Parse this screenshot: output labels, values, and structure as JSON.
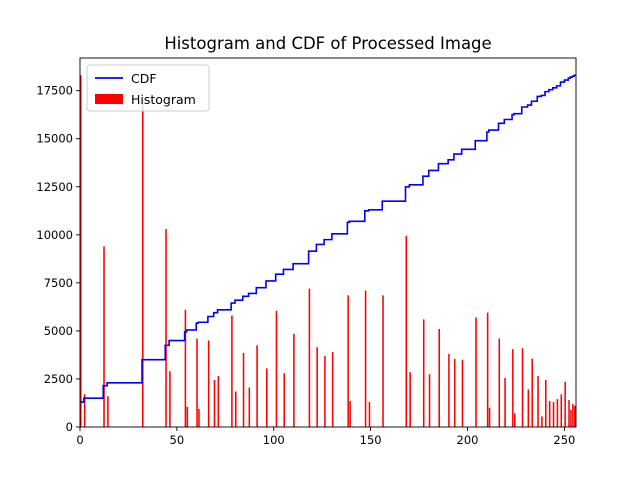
{
  "chart_data": {
    "type": "bar",
    "title": "Histogram and CDF of Processed Image",
    "xlabel": "",
    "ylabel": "",
    "xlim": [
      0,
      256
    ],
    "ylim": [
      0,
      19200
    ],
    "xticks": [
      0,
      50,
      100,
      150,
      200,
      250
    ],
    "xtick_labels": [
      "0",
      "50",
      "100",
      "150",
      "200",
      "250"
    ],
    "yticks": [
      0,
      2500,
      5000,
      7500,
      10000,
      12500,
      15000,
      17500
    ],
    "ytick_labels": [
      "0",
      "2500",
      "5000",
      "7500",
      "10000",
      "12500",
      "15000",
      "17500"
    ],
    "grid": false,
    "legend_position": "top-left",
    "legend": [
      {
        "label": "CDF",
        "color": "#0000ff",
        "kind": "line"
      },
      {
        "label": "Histogram",
        "color": "#ff0000",
        "kind": "patch"
      }
    ],
    "series": [
      {
        "name": "Histogram",
        "kind": "bar",
        "color": "#ff0000",
        "x": [
          0,
          2,
          12,
          14,
          32,
          44,
          46,
          54,
          55,
          60,
          61,
          66,
          69,
          71,
          78,
          80,
          84,
          87,
          91,
          96,
          101,
          105,
          110,
          118,
          122,
          126,
          130,
          138,
          139,
          147,
          149,
          156,
          168,
          170,
          177,
          180,
          185,
          190,
          193,
          197,
          204,
          210,
          211,
          216,
          219,
          223,
          224,
          228,
          231,
          233,
          236,
          238,
          240,
          242,
          244,
          246,
          248,
          250,
          252,
          253,
          254,
          255
        ],
        "values": [
          18300,
          1700,
          9400,
          1600,
          17000,
          10300,
          2900,
          6100,
          1050,
          4600,
          950,
          4500,
          2450,
          2650,
          5800,
          1850,
          3850,
          2050,
          4250,
          3050,
          6050,
          2800,
          4850,
          7200,
          4150,
          3700,
          3900,
          6850,
          1350,
          7100,
          1300,
          6850,
          9950,
          2850,
          5600,
          2750,
          5100,
          3800,
          3550,
          3500,
          5700,
          5950,
          1000,
          4600,
          2550,
          4050,
          700,
          4100,
          1950,
          3550,
          2650,
          550,
          2450,
          1350,
          1300,
          1450,
          1700,
          2350,
          1400,
          900,
          1200,
          1100
        ]
      },
      {
        "name": "CDF",
        "kind": "step-line",
        "color": "#0000ff",
        "x": [
          0,
          2,
          12,
          14,
          32,
          44,
          46,
          54,
          55,
          60,
          61,
          66,
          69,
          71,
          78,
          80,
          84,
          87,
          91,
          96,
          101,
          105,
          110,
          118,
          122,
          126,
          130,
          138,
          139,
          147,
          149,
          156,
          168,
          170,
          177,
          180,
          185,
          190,
          193,
          197,
          204,
          210,
          211,
          216,
          219,
          223,
          224,
          228,
          231,
          233,
          236,
          238,
          240,
          242,
          244,
          246,
          248,
          250,
          252,
          253,
          254,
          255
        ],
        "values": [
          1300,
          1500,
          2150,
          2300,
          3500,
          4250,
          4500,
          4950,
          5050,
          5400,
          5450,
          5750,
          5950,
          6100,
          6450,
          6600,
          6800,
          6950,
          7250,
          7600,
          7950,
          8200,
          8500,
          9150,
          9500,
          9750,
          10050,
          10650,
          10700,
          11250,
          11300,
          11750,
          12500,
          12600,
          13050,
          13350,
          13700,
          13900,
          14200,
          14450,
          14900,
          15350,
          15450,
          15800,
          16000,
          16250,
          16300,
          16650,
          16750,
          16950,
          17200,
          17250,
          17450,
          17550,
          17650,
          17750,
          17950,
          18050,
          18150,
          18200,
          18250,
          18300
        ]
      }
    ]
  }
}
